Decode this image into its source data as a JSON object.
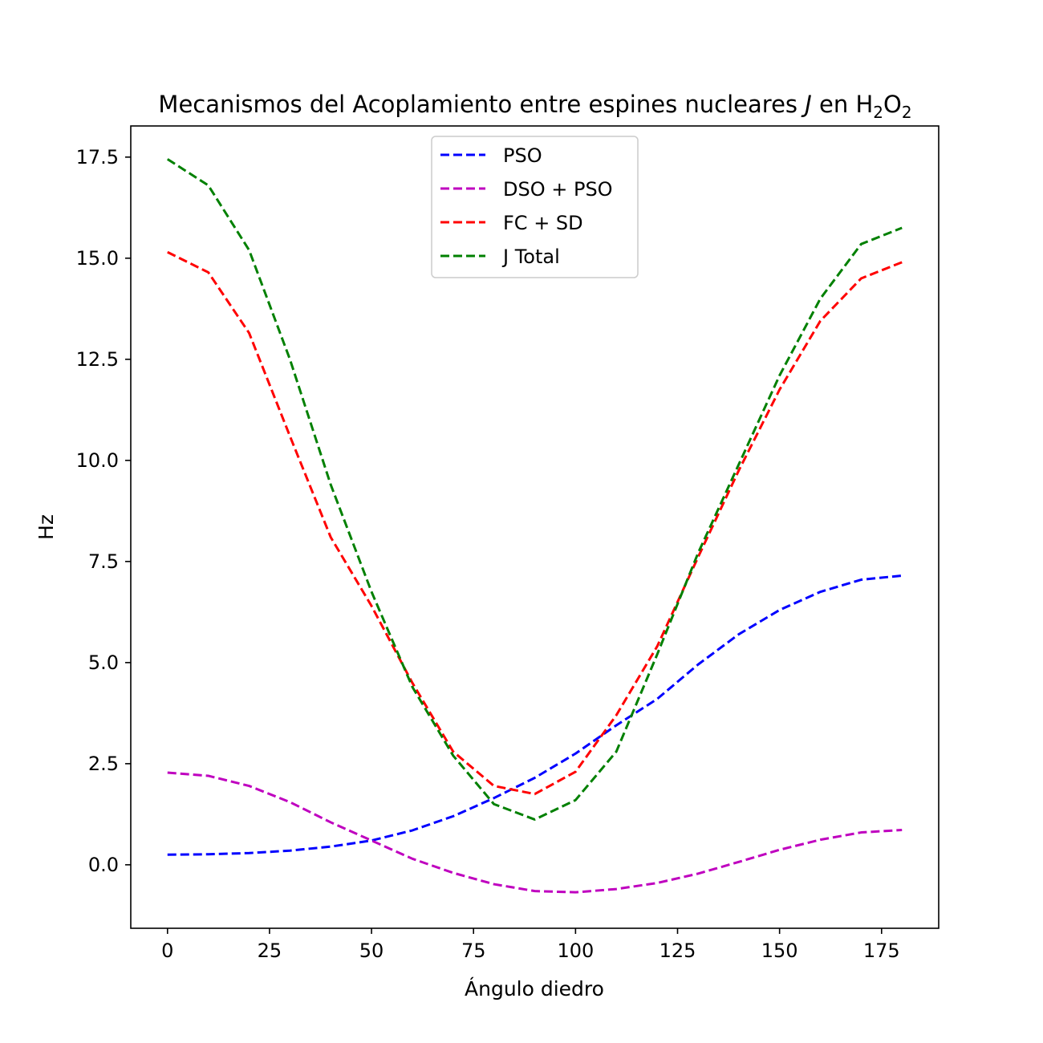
{
  "chart_data": {
    "type": "line",
    "title_prefix": "Mecanismos del Acoplamiento entre espines nucleares ",
    "title_italic": "J",
    "title_middle": " en H",
    "title_sub1": "2",
    "title_o": "O",
    "title_sub2": "2",
    "xlabel": "Ángulo diedro",
    "ylabel": "Hz",
    "xlim": [
      -9,
      189
    ],
    "ylim": [
      -1.57,
      18.27
    ],
    "xticks": [
      0,
      25,
      50,
      75,
      100,
      125,
      150,
      175
    ],
    "xtick_labels": [
      "0",
      "25",
      "50",
      "75",
      "100",
      "125",
      "150",
      "175"
    ],
    "yticks": [
      0.0,
      2.5,
      5.0,
      7.5,
      10.0,
      12.5,
      15.0,
      17.5
    ],
    "ytick_labels": [
      "0.0",
      "2.5",
      "5.0",
      "7.5",
      "10.0",
      "12.5",
      "15.0",
      "17.5"
    ],
    "grid": false,
    "legend_position": "upper-center",
    "line_style": "dashed",
    "x": [
      0,
      10,
      20,
      30,
      40,
      50,
      60,
      70,
      80,
      90,
      100,
      110,
      120,
      130,
      140,
      150,
      160,
      170,
      180
    ],
    "series": [
      {
        "name": "PSO",
        "color": "#0000ff",
        "values": [
          0.25,
          0.26,
          0.29,
          0.35,
          0.45,
          0.6,
          0.85,
          1.2,
          1.65,
          2.15,
          2.75,
          3.45,
          4.1,
          4.95,
          5.7,
          6.3,
          6.75,
          7.05,
          7.15
        ]
      },
      {
        "name": "DSO + PSO",
        "color": "#bf00bf",
        "values": [
          2.28,
          2.2,
          1.95,
          1.55,
          1.05,
          0.6,
          0.15,
          -0.2,
          -0.48,
          -0.65,
          -0.68,
          -0.6,
          -0.45,
          -0.22,
          0.07,
          0.37,
          0.62,
          0.8,
          0.86
        ]
      },
      {
        "name": "FC + SD",
        "color": "#ff0000",
        "values": [
          15.15,
          14.65,
          13.15,
          10.6,
          8.1,
          6.4,
          4.5,
          2.8,
          1.95,
          1.75,
          2.3,
          3.7,
          5.4,
          7.6,
          9.75,
          11.75,
          13.45,
          14.5,
          14.9
        ]
      },
      {
        "name": "J Total",
        "color": "#008000",
        "values": [
          17.45,
          16.8,
          15.2,
          12.5,
          9.4,
          6.75,
          4.4,
          2.7,
          1.5,
          1.12,
          1.6,
          2.8,
          5.2,
          7.7,
          9.9,
          12.1,
          14.0,
          15.35,
          15.75
        ]
      }
    ]
  }
}
